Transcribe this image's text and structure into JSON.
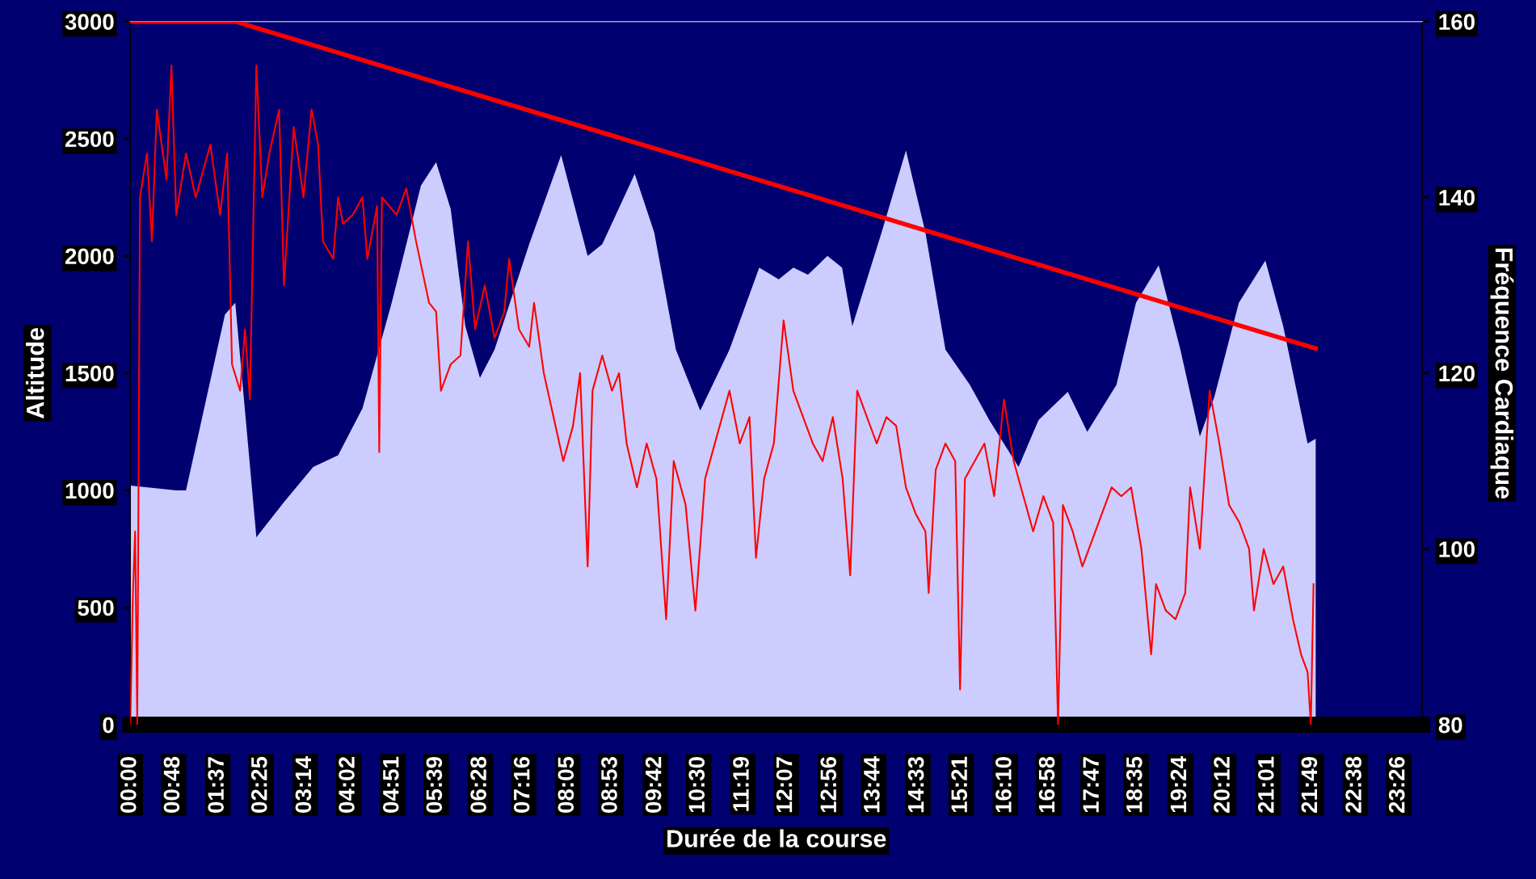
{
  "chart_data": {
    "type": "area",
    "xlabel": "Durée de la course",
    "ylabel": "Altitude",
    "y2label": "Fréquence Cardiaque",
    "xlim": [
      0,
      23.87
    ],
    "ylim": [
      0,
      3000
    ],
    "yticks": [
      0,
      500,
      1000,
      1500,
      2000,
      2500,
      3000
    ],
    "y2lim": [
      80,
      160
    ],
    "y2ticks": [
      80,
      100,
      120,
      140,
      160
    ],
    "xticks": [
      {
        "value": 0,
        "label": "00:00"
      },
      {
        "value": 0.8,
        "label": "00:48"
      },
      {
        "value": 1.617,
        "label": "01:37"
      },
      {
        "value": 2.417,
        "label": "02:25"
      },
      {
        "value": 3.233,
        "label": "03:14"
      },
      {
        "value": 4.033,
        "label": "04:02"
      },
      {
        "value": 4.85,
        "label": "04:51"
      },
      {
        "value": 5.65,
        "label": "05:39"
      },
      {
        "value": 6.467,
        "label": "06:28"
      },
      {
        "value": 7.267,
        "label": "07:16"
      },
      {
        "value": 8.083,
        "label": "08:05"
      },
      {
        "value": 8.883,
        "label": "08:53"
      },
      {
        "value": 9.7,
        "label": "09:42"
      },
      {
        "value": 10.5,
        "label": "10:30"
      },
      {
        "value": 11.317,
        "label": "11:19"
      },
      {
        "value": 12.117,
        "label": "12:07"
      },
      {
        "value": 12.933,
        "label": "12:56"
      },
      {
        "value": 13.733,
        "label": "13:44"
      },
      {
        "value": 14.55,
        "label": "14:33"
      },
      {
        "value": 15.35,
        "label": "15:21"
      },
      {
        "value": 16.167,
        "label": "16:10"
      },
      {
        "value": 16.967,
        "label": "16:58"
      },
      {
        "value": 17.783,
        "label": "17:47"
      },
      {
        "value": 18.583,
        "label": "18:35"
      },
      {
        "value": 19.4,
        "label": "19:24"
      },
      {
        "value": 20.2,
        "label": "20:12"
      },
      {
        "value": 21.017,
        "label": "21:01"
      },
      {
        "value": 21.817,
        "label": "21:49"
      },
      {
        "value": 22.633,
        "label": "22:38"
      },
      {
        "value": 23.433,
        "label": "23:26"
      }
    ],
    "grid": false,
    "legend": false,
    "series": [
      {
        "color": "#ccccff",
        "x": [
          0,
          0.85,
          1.03,
          1.75,
          1.94,
          2.33,
          2.84,
          3.38,
          3.84,
          4.29,
          4.83,
          5.37,
          5.65,
          5.92,
          6.19,
          6.46,
          6.73,
          7.37,
          7.96,
          8.45,
          8.72,
          9.32,
          9.68,
          10.08,
          10.53,
          11.07,
          11.62,
          11.98,
          12.25,
          12.52,
          12.88,
          13.15,
          13.34,
          13.88,
          14.33,
          14.69,
          15.06,
          15.51,
          15.87,
          16.41,
          16.78,
          17.32,
          17.68,
          18.22,
          18.58,
          19.0,
          19.4,
          19.76,
          20.03,
          20.48,
          20.97,
          21.3,
          21.75,
          21.9
        ],
        "values": [
          1020,
          1000,
          1000,
          1750,
          1800,
          800,
          950,
          1100,
          1150,
          1350,
          1800,
          2300,
          2400,
          2200,
          1700,
          1480,
          1600,
          2050,
          2430,
          2000,
          2050,
          2350,
          2100,
          1600,
          1340,
          1600,
          1950,
          1900,
          1950,
          1920,
          2000,
          1950,
          1700,
          2100,
          2450,
          2100,
          1600,
          1450,
          1300,
          1100,
          1300,
          1420,
          1250,
          1450,
          1800,
          1960,
          1600,
          1230,
          1400,
          1800,
          1980,
          1700,
          1200,
          1220
        ]
      },
      {
        "type": "line",
        "axis": "y2",
        "color": "#ff0000",
        "x": [
          0,
          0.05,
          0.09,
          0.13,
          0.18,
          0.31,
          0.4,
          0.49,
          0.67,
          0.76,
          0.85,
          1.03,
          1.21,
          1.48,
          1.66,
          1.79,
          1.88,
          2.03,
          2.12,
          2.21,
          2.33,
          2.44,
          2.57,
          2.75,
          2.84,
          3.02,
          3.2,
          3.35,
          3.47,
          3.56,
          3.75,
          3.84,
          3.93,
          4.11,
          4.29,
          4.38,
          4.56,
          4.6,
          4.65,
          4.92,
          5.1,
          5.28,
          5.52,
          5.65,
          5.74,
          5.92,
          6.1,
          6.24,
          6.37,
          6.55,
          6.73,
          6.91,
          7.0,
          7.18,
          7.37,
          7.46,
          7.64,
          7.82,
          8.0,
          8.18,
          8.31,
          8.45,
          8.54,
          8.72,
          8.9,
          9.03,
          9.17,
          9.36,
          9.54,
          9.72,
          9.9,
          10.04,
          10.26,
          10.44,
          10.62,
          10.8,
          11.07,
          11.26,
          11.44,
          11.56,
          11.71,
          11.89,
          12.07,
          12.25,
          12.43,
          12.61,
          12.79,
          12.98,
          13.16,
          13.3,
          13.43,
          13.61,
          13.79,
          13.97,
          14.15,
          14.33,
          14.51,
          14.69,
          14.75,
          14.88,
          15.06,
          15.24,
          15.33,
          15.42,
          15.6,
          15.78,
          15.96,
          16.14,
          16.32,
          16.5,
          16.68,
          16.87,
          17.05,
          17.14,
          17.23,
          17.41,
          17.59,
          17.77,
          17.95,
          18.13,
          18.31,
          18.49,
          18.68,
          18.86,
          18.95,
          19.13,
          19.31,
          19.49,
          19.58,
          19.76,
          19.94,
          20.12,
          20.3,
          20.49,
          20.67,
          20.76,
          20.94,
          21.12,
          21.3,
          21.48,
          21.63,
          21.75,
          21.81,
          21.86
        ],
        "values": [
          80,
          95,
          102,
          80,
          140,
          145,
          135,
          150,
          142,
          155,
          138,
          145,
          140,
          146,
          138,
          145,
          121,
          118,
          125,
          117,
          155,
          140,
          145,
          150,
          130,
          148,
          140,
          150,
          146,
          135,
          133,
          140,
          137,
          138,
          140,
          133,
          139,
          111,
          140,
          138,
          141,
          135,
          128,
          127,
          118,
          121,
          122,
          135,
          125,
          130,
          124,
          127,
          133,
          125,
          123,
          128,
          120,
          115,
          110,
          114,
          120,
          98,
          118,
          122,
          118,
          120,
          112,
          107,
          112,
          108,
          92,
          110,
          105,
          93,
          108,
          112,
          118,
          112,
          115,
          99,
          108,
          112,
          126,
          118,
          115,
          112,
          110,
          115,
          108,
          97,
          118,
          115,
          112,
          115,
          114,
          107,
          104,
          102,
          95,
          109,
          112,
          110,
          84,
          108,
          110,
          112,
          106,
          117,
          110,
          106,
          102,
          106,
          103,
          80,
          105,
          102,
          98,
          101,
          104,
          107,
          106,
          107,
          100,
          88,
          96,
          93,
          92,
          95,
          107,
          100,
          118,
          112,
          105,
          103,
          100,
          93,
          100,
          96,
          98,
          92,
          88,
          86,
          80,
          96
        ]
      },
      {
        "type": "line",
        "axis": "y2",
        "color": "#ff0000",
        "x": [
          0,
          1.94,
          21.9
        ],
        "values": [
          160,
          160,
          122.8
        ]
      }
    ]
  }
}
